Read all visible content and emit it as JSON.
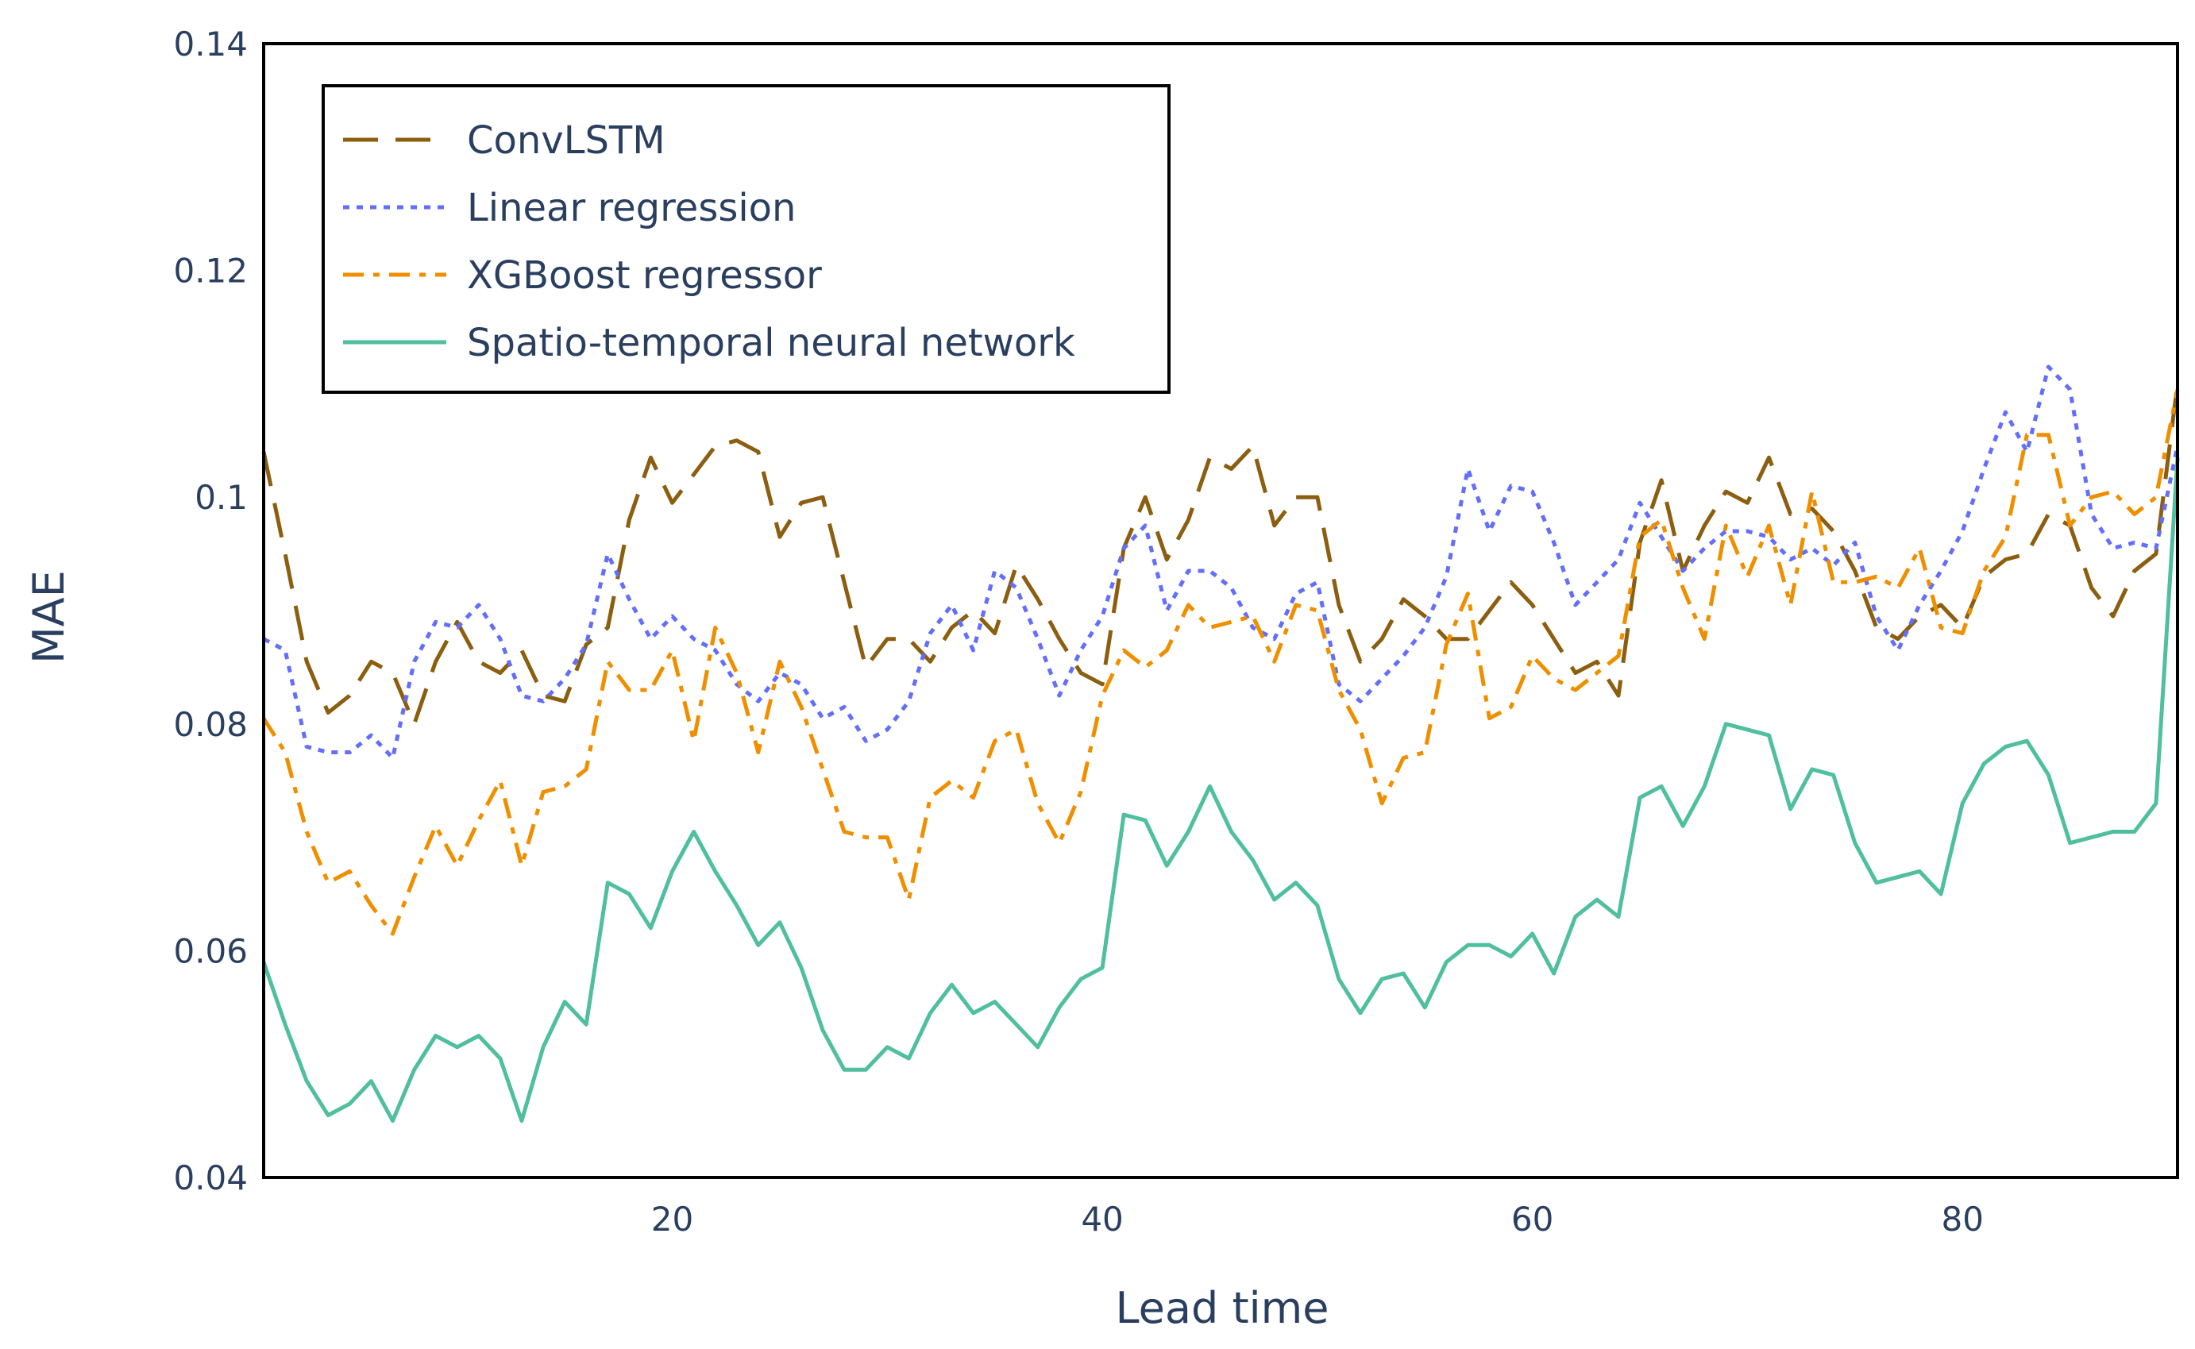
{
  "chart_data": {
    "type": "line",
    "title": "",
    "xlabel": "Lead time",
    "ylabel": "MAE",
    "xlim": [
      1,
      90
    ],
    "ylim": [
      0.04,
      0.14
    ],
    "x_ticks": [
      20,
      40,
      60,
      80
    ],
    "y_ticks": [
      0.04,
      0.06,
      0.08,
      0.1,
      0.12,
      0.14
    ],
    "y_tick_labels": [
      "0.04",
      "0.06",
      "0.08",
      "0.1",
      "0.12",
      "0.14"
    ],
    "grid": false,
    "legend_position": "top-left",
    "x": [
      1,
      2,
      3,
      4,
      5,
      6,
      7,
      8,
      9,
      10,
      11,
      12,
      13,
      14,
      15,
      16,
      17,
      18,
      19,
      20,
      21,
      22,
      23,
      24,
      25,
      26,
      27,
      28,
      29,
      30,
      31,
      32,
      33,
      34,
      35,
      36,
      37,
      38,
      39,
      40,
      41,
      42,
      43,
      44,
      45,
      46,
      47,
      48,
      49,
      50,
      51,
      52,
      53,
      54,
      55,
      56,
      57,
      58,
      59,
      60,
      61,
      62,
      63,
      64,
      65,
      66,
      67,
      68,
      69,
      70,
      71,
      72,
      73,
      74,
      75,
      76,
      77,
      78,
      79,
      80,
      81,
      82,
      83,
      84,
      85,
      86,
      87,
      88,
      89,
      90
    ],
    "series": [
      {
        "name": "ConvLSTM",
        "color": "#8c5e0f",
        "dash": "dash",
        "values": [
          0.104,
          0.095,
          0.0855,
          0.081,
          0.0825,
          0.0855,
          0.0845,
          0.08,
          0.0855,
          0.089,
          0.0855,
          0.0845,
          0.0865,
          0.0825,
          0.082,
          0.087,
          0.0885,
          0.098,
          0.1035,
          0.0995,
          0.102,
          0.1045,
          0.105,
          0.104,
          0.0965,
          0.0995,
          0.1,
          0.0925,
          0.085,
          0.0875,
          0.0875,
          0.0855,
          0.0885,
          0.09,
          0.088,
          0.094,
          0.091,
          0.0875,
          0.0845,
          0.0835,
          0.0955,
          0.1,
          0.0945,
          0.098,
          0.1035,
          0.1025,
          0.1045,
          0.0975,
          0.1,
          0.1,
          0.0905,
          0.0855,
          0.0875,
          0.091,
          0.0895,
          0.0875,
          0.0875,
          0.09,
          0.0925,
          0.0905,
          0.0875,
          0.0845,
          0.0855,
          0.0825,
          0.096,
          0.1015,
          0.0935,
          0.0975,
          0.1005,
          0.0995,
          0.1035,
          0.0985,
          0.099,
          0.097,
          0.0935,
          0.0885,
          0.0875,
          0.0895,
          0.0905,
          0.0885,
          0.093,
          0.0945,
          0.095,
          0.0985,
          0.0975,
          0.092,
          0.0895,
          0.0935,
          0.095,
          0.11
        ]
      },
      {
        "name": "Linear regression",
        "color": "#636efa",
        "dash": "dot",
        "values": [
          0.0875,
          0.0865,
          0.078,
          0.0775,
          0.0775,
          0.079,
          0.077,
          0.0855,
          0.089,
          0.0885,
          0.0905,
          0.0875,
          0.0825,
          0.082,
          0.084,
          0.087,
          0.095,
          0.091,
          0.0875,
          0.0895,
          0.0875,
          0.0865,
          0.0835,
          0.082,
          0.0845,
          0.0835,
          0.0805,
          0.0815,
          0.0785,
          0.0795,
          0.082,
          0.088,
          0.0905,
          0.0865,
          0.0935,
          0.092,
          0.0875,
          0.0825,
          0.0865,
          0.0895,
          0.0955,
          0.0975,
          0.09,
          0.0935,
          0.0935,
          0.092,
          0.0885,
          0.0875,
          0.0915,
          0.0925,
          0.0835,
          0.082,
          0.084,
          0.086,
          0.0885,
          0.093,
          0.1025,
          0.097,
          0.101,
          0.1005,
          0.096,
          0.0905,
          0.0925,
          0.0945,
          0.0995,
          0.0965,
          0.0935,
          0.0955,
          0.097,
          0.097,
          0.0965,
          0.0945,
          0.0955,
          0.094,
          0.096,
          0.0895,
          0.0865,
          0.0905,
          0.0935,
          0.097,
          0.1025,
          0.1075,
          0.104,
          0.1115,
          0.1095,
          0.0985,
          0.0955,
          0.096,
          0.0955,
          0.1045
        ]
      },
      {
        "name": "XGBoost regressor",
        "color": "#ef8f00",
        "dash": "dashdot",
        "values": [
          0.0805,
          0.0775,
          0.0705,
          0.066,
          0.067,
          0.064,
          0.0615,
          0.0665,
          0.071,
          0.0675,
          0.0715,
          0.075,
          0.0675,
          0.074,
          0.0745,
          0.076,
          0.0855,
          0.083,
          0.083,
          0.0865,
          0.0785,
          0.0885,
          0.0845,
          0.0775,
          0.0855,
          0.0815,
          0.076,
          0.0705,
          0.07,
          0.07,
          0.0645,
          0.0735,
          0.075,
          0.0735,
          0.0785,
          0.0795,
          0.073,
          0.0695,
          0.074,
          0.0825,
          0.0865,
          0.085,
          0.0865,
          0.0905,
          0.0885,
          0.089,
          0.0895,
          0.0855,
          0.0905,
          0.09,
          0.083,
          0.0795,
          0.073,
          0.077,
          0.0775,
          0.087,
          0.0915,
          0.0805,
          0.0815,
          0.086,
          0.084,
          0.083,
          0.0845,
          0.086,
          0.0965,
          0.098,
          0.092,
          0.0875,
          0.0975,
          0.093,
          0.0975,
          0.0905,
          0.1005,
          0.0925,
          0.0925,
          0.093,
          0.092,
          0.0955,
          0.0885,
          0.088,
          0.0935,
          0.0965,
          0.1055,
          0.1055,
          0.0975,
          0.1,
          0.1005,
          0.0985,
          0.1,
          0.1095
        ]
      },
      {
        "name": "Spatio-temporal neural network",
        "color": "#4fbf9f",
        "dash": "solid",
        "values": [
          0.059,
          0.0535,
          0.0485,
          0.0455,
          0.0465,
          0.0485,
          0.045,
          0.0495,
          0.0525,
          0.0515,
          0.0525,
          0.0505,
          0.045,
          0.0515,
          0.0555,
          0.0535,
          0.066,
          0.065,
          0.062,
          0.067,
          0.0705,
          0.067,
          0.064,
          0.0605,
          0.0625,
          0.0585,
          0.053,
          0.0495,
          0.0495,
          0.0515,
          0.0505,
          0.0545,
          0.057,
          0.0545,
          0.0555,
          0.0535,
          0.0515,
          0.055,
          0.0575,
          0.0585,
          0.072,
          0.0715,
          0.0675,
          0.0705,
          0.0745,
          0.0705,
          0.068,
          0.0645,
          0.066,
          0.064,
          0.0575,
          0.0545,
          0.0575,
          0.058,
          0.055,
          0.059,
          0.0605,
          0.0605,
          0.0595,
          0.0615,
          0.058,
          0.063,
          0.0645,
          0.063,
          0.0735,
          0.0745,
          0.071,
          0.0745,
          0.08,
          0.0795,
          0.079,
          0.0725,
          0.076,
          0.0755,
          0.0695,
          0.066,
          0.0665,
          0.067,
          0.065,
          0.073,
          0.0765,
          0.078,
          0.0785,
          0.0755,
          0.0695,
          0.07,
          0.0705,
          0.0705,
          0.073,
          0.1035
        ]
      }
    ]
  }
}
